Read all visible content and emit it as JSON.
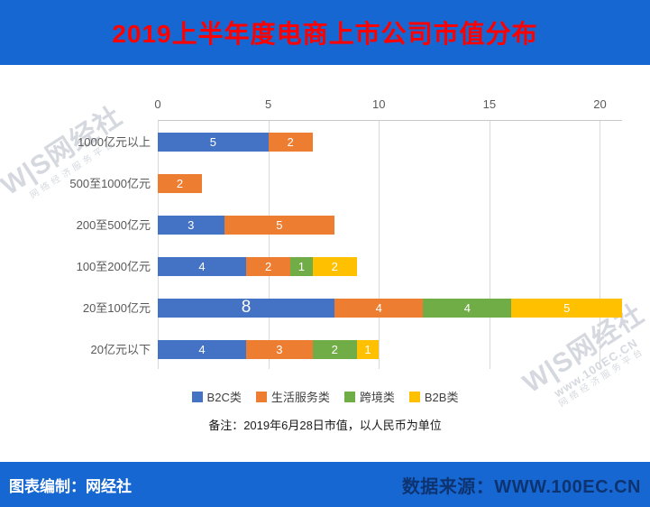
{
  "header": {
    "title": "2019上半年度电商上市公司市值分布"
  },
  "footer": {
    "left": "图表编制：网经社",
    "right": "数据来源：WWW.100EC.CN"
  },
  "watermark": {
    "brand": "W|S网经社",
    "url": "www.100EC.CN",
    "tagline": "网络经济服务平台"
  },
  "chart_data": {
    "type": "bar",
    "orientation": "horizontal",
    "stacked": true,
    "title": "2019上半年度电商上市公司市值分布",
    "categories": [
      "1000亿元以上",
      "500至1000亿元",
      "200至500亿元",
      "100至200亿元",
      "20至100亿元",
      "20亿元以下"
    ],
    "series": [
      {
        "name": "B2C类",
        "color": "#4472C4",
        "values": [
          5,
          0,
          3,
          4,
          8,
          4
        ]
      },
      {
        "name": "生活服务类",
        "color": "#ED7D31",
        "values": [
          2,
          2,
          5,
          2,
          4,
          3
        ]
      },
      {
        "name": "跨境类",
        "color": "#70AD47",
        "values": [
          0,
          0,
          0,
          1,
          4,
          2
        ]
      },
      {
        "name": "B2B类",
        "color": "#FFC000",
        "values": [
          0,
          0,
          0,
          2,
          5,
          1
        ]
      }
    ],
    "x_ticks": [
      0,
      5,
      10,
      15,
      20
    ],
    "xlim": [
      0,
      21
    ],
    "grid": true,
    "legend_position": "bottom",
    "note": "备注：2019年6月28日市值，以人民币为单位"
  }
}
